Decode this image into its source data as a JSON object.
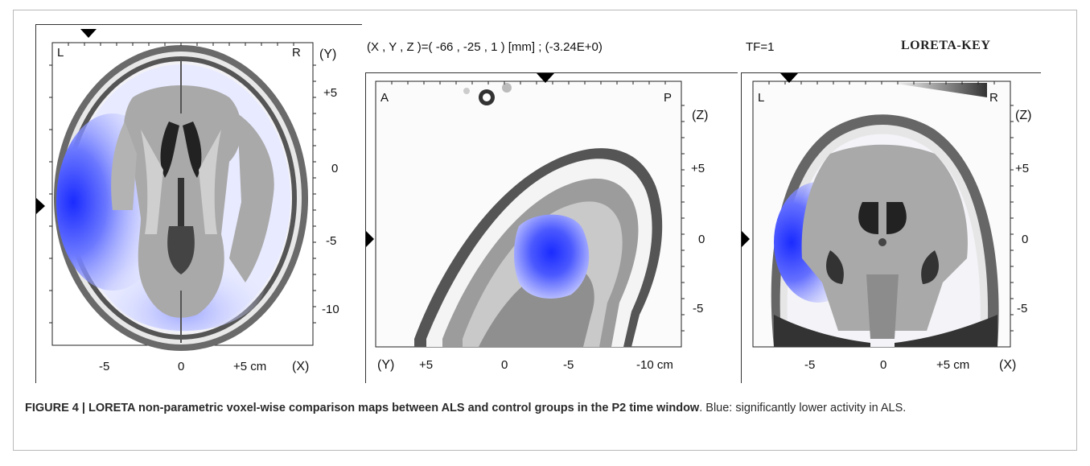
{
  "figure": {
    "coords_readout": "(X , Y , Z )=( -66 , -25 , 1 ) [mm]  ;  (-3.24E+0)",
    "tf_readout": "TF=1",
    "brand": "LORETA-KEY",
    "panels": {
      "axial": {
        "corner_left": "L",
        "corner_right": "R",
        "axis_name": "(Y)",
        "ticks_v": [
          "+5",
          "0",
          "-5",
          "-10"
        ],
        "ticks_h": [
          "-5",
          "0",
          "+5 cm"
        ],
        "axis_h_name": "(X)"
      },
      "sagittal": {
        "corner_left": "A",
        "corner_right": "P",
        "axis_name": "(Z)",
        "ticks_v": [
          "+5",
          "0",
          "-5"
        ],
        "axis_h_name": "(Y)",
        "ticks_h": [
          "+5",
          "0",
          "-5",
          "-10 cm"
        ]
      },
      "coronal": {
        "corner_left": "L",
        "corner_right": "R",
        "axis_name": "(Z)",
        "ticks_v": [
          "+5",
          "0",
          "-5"
        ],
        "ticks_h": [
          "-5",
          "0",
          "+5 cm"
        ],
        "axis_h_name": "(X)"
      }
    },
    "colors": {
      "activation": "#1a2bff",
      "brain_gray": "#a9a9a9",
      "skull": "#555555"
    }
  },
  "caption": {
    "bold": "FIGURE 4 | LORETA non-parametric voxel-wise comparison maps between ALS and control groups in the P2 time window",
    "rest": ". Blue: significantly lower activity in ALS."
  }
}
